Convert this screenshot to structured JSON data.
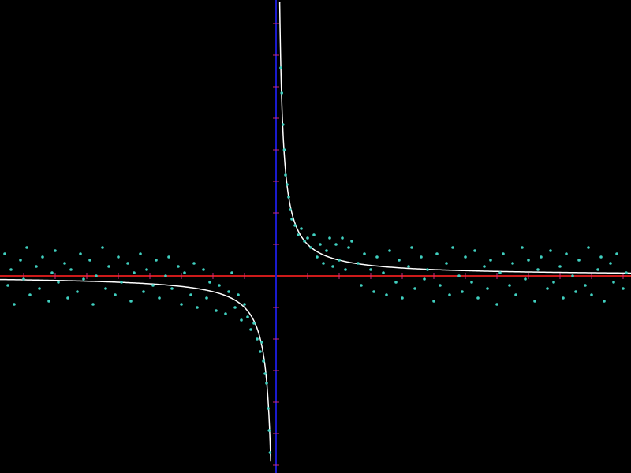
{
  "chart_data": {
    "type": "scatter",
    "title": "",
    "xlabel": "",
    "ylabel": "",
    "xlim": [
      -8.75,
      11.25
    ],
    "ylim": [
      -6.25,
      8.75
    ],
    "grid": false,
    "legend": "none",
    "colors": {
      "background": "#000000",
      "x_axis": "#cc1a1a",
      "y_axis": "#1a1acc",
      "tick": "#cc2a7a",
      "curve": "#ffffff",
      "points": "#40d0c0"
    },
    "x_ticks": [
      -8,
      -7,
      -6,
      -5,
      -4,
      -3,
      -2,
      -1,
      1,
      2,
      3,
      4,
      5,
      6,
      7,
      8,
      9,
      10,
      11
    ],
    "y_ticks": [
      -6,
      -5,
      -4,
      -3,
      -2,
      -1,
      1,
      2,
      3,
      4,
      5,
      6,
      7,
      8
    ],
    "curve": {
      "name": "",
      "formula": "y = 1/x",
      "left_x_range": [
        -8.75,
        -0.17
      ],
      "right_x_range": [
        0.115,
        11.25
      ]
    },
    "series": [
      {
        "name": "",
        "points": [
          [
            -8.6,
            0.7
          ],
          [
            -8.5,
            -0.3
          ],
          [
            -8.4,
            0.2
          ],
          [
            -8.3,
            -0.9
          ],
          [
            -8.1,
            0.5
          ],
          [
            -8.0,
            -0.1
          ],
          [
            -7.9,
            0.9
          ],
          [
            -7.8,
            -0.6
          ],
          [
            -7.6,
            0.3
          ],
          [
            -7.5,
            -0.4
          ],
          [
            -7.4,
            0.6
          ],
          [
            -7.2,
            -0.8
          ],
          [
            -7.1,
            0.1
          ],
          [
            -7.0,
            0.8
          ],
          [
            -6.9,
            -0.2
          ],
          [
            -6.7,
            0.4
          ],
          [
            -6.6,
            -0.7
          ],
          [
            -6.5,
            0.2
          ],
          [
            -6.3,
            -0.5
          ],
          [
            -6.2,
            0.7
          ],
          [
            -6.1,
            -0.1
          ],
          [
            -5.9,
            0.5
          ],
          [
            -5.8,
            -0.9
          ],
          [
            -5.7,
            0.0
          ],
          [
            -5.5,
            0.9
          ],
          [
            -5.4,
            -0.4
          ],
          [
            -5.3,
            0.3
          ],
          [
            -5.1,
            -0.6
          ],
          [
            -5.0,
            0.6
          ],
          [
            -4.9,
            -0.2
          ],
          [
            -4.7,
            0.4
          ],
          [
            -4.6,
            -0.8
          ],
          [
            -4.5,
            0.1
          ],
          [
            -4.3,
            0.7
          ],
          [
            -4.2,
            -0.5
          ],
          [
            -4.1,
            0.2
          ],
          [
            -3.9,
            -0.3
          ],
          [
            -3.8,
            0.5
          ],
          [
            -3.7,
            -0.7
          ],
          [
            -3.5,
            0.0
          ],
          [
            -3.4,
            0.6
          ],
          [
            -3.3,
            -0.4
          ],
          [
            -3.1,
            0.3
          ],
          [
            -3.0,
            -0.9
          ],
          [
            -2.9,
            0.1
          ],
          [
            -2.7,
            -0.6
          ],
          [
            -2.6,
            0.4
          ],
          [
            -2.5,
            -1.0
          ],
          [
            -2.3,
            0.2
          ],
          [
            -2.2,
            -0.7
          ],
          [
            -2.1,
            -0.2
          ],
          [
            -1.9,
            -1.1
          ],
          [
            -1.8,
            -0.3
          ],
          [
            -1.6,
            -1.2
          ],
          [
            -1.5,
            -0.5
          ],
          [
            -1.4,
            0.1
          ],
          [
            -1.3,
            -1.0
          ],
          [
            -1.2,
            -0.6
          ],
          [
            -1.1,
            -1.4
          ],
          [
            -1.0,
            -0.9
          ],
          [
            -0.9,
            -1.3
          ],
          [
            -0.8,
            -1.7
          ],
          [
            -0.7,
            -1.5
          ],
          [
            -0.6,
            -2.0
          ],
          [
            -0.5,
            -2.4
          ],
          [
            -0.45,
            -2.1
          ],
          [
            -0.4,
            -2.7
          ],
          [
            -0.35,
            -3.1
          ],
          [
            -0.3,
            -3.4
          ],
          [
            -0.25,
            -4.2
          ],
          [
            -0.22,
            -4.9
          ],
          [
            -0.19,
            -5.6
          ],
          [
            0.15,
            6.6
          ],
          [
            0.18,
            5.8
          ],
          [
            0.22,
            4.8
          ],
          [
            0.26,
            4.0
          ],
          [
            0.3,
            3.2
          ],
          [
            0.35,
            2.9
          ],
          [
            0.4,
            2.5
          ],
          [
            0.45,
            2.1
          ],
          [
            0.5,
            1.8
          ],
          [
            0.6,
            1.6
          ],
          [
            0.7,
            1.3
          ],
          [
            0.8,
            1.5
          ],
          [
            0.9,
            1.1
          ],
          [
            1.0,
            1.2
          ],
          [
            1.1,
            0.9
          ],
          [
            1.2,
            1.3
          ],
          [
            1.3,
            0.6
          ],
          [
            1.4,
            1.0
          ],
          [
            1.5,
            0.4
          ],
          [
            1.6,
            0.8
          ],
          [
            1.7,
            1.2
          ],
          [
            1.8,
            0.3
          ],
          [
            1.9,
            1.0
          ],
          [
            2.0,
            0.5
          ],
          [
            2.1,
            1.2
          ],
          [
            2.2,
            0.2
          ],
          [
            2.3,
            0.9
          ],
          [
            2.4,
            1.1
          ],
          [
            2.6,
            0.4
          ],
          [
            2.7,
            -0.3
          ],
          [
            2.8,
            0.7
          ],
          [
            3.0,
            0.2
          ],
          [
            3.1,
            -0.5
          ],
          [
            3.2,
            0.6
          ],
          [
            3.4,
            0.1
          ],
          [
            3.5,
            -0.6
          ],
          [
            3.6,
            0.8
          ],
          [
            3.8,
            -0.2
          ],
          [
            3.9,
            0.5
          ],
          [
            4.0,
            -0.7
          ],
          [
            4.2,
            0.3
          ],
          [
            4.3,
            0.9
          ],
          [
            4.4,
            -0.4
          ],
          [
            4.6,
            0.6
          ],
          [
            4.7,
            -0.1
          ],
          [
            4.8,
            0.2
          ],
          [
            5.0,
            -0.8
          ],
          [
            5.1,
            0.7
          ],
          [
            5.2,
            -0.3
          ],
          [
            5.4,
            0.4
          ],
          [
            5.5,
            -0.6
          ],
          [
            5.6,
            0.9
          ],
          [
            5.8,
            0.0
          ],
          [
            5.9,
            -0.5
          ],
          [
            6.0,
            0.6
          ],
          [
            6.2,
            -0.2
          ],
          [
            6.3,
            0.8
          ],
          [
            6.4,
            -0.7
          ],
          [
            6.6,
            0.3
          ],
          [
            6.7,
            -0.4
          ],
          [
            6.8,
            0.5
          ],
          [
            7.0,
            -0.9
          ],
          [
            7.1,
            0.1
          ],
          [
            7.2,
            0.7
          ],
          [
            7.4,
            -0.3
          ],
          [
            7.5,
            0.4
          ],
          [
            7.6,
            -0.6
          ],
          [
            7.8,
            0.9
          ],
          [
            7.9,
            -0.1
          ],
          [
            8.0,
            0.5
          ],
          [
            8.2,
            -0.8
          ],
          [
            8.3,
            0.2
          ],
          [
            8.4,
            0.6
          ],
          [
            8.6,
            -0.4
          ],
          [
            8.7,
            0.8
          ],
          [
            8.8,
            -0.2
          ],
          [
            9.0,
            0.3
          ],
          [
            9.1,
            -0.7
          ],
          [
            9.2,
            0.7
          ],
          [
            9.4,
            0.0
          ],
          [
            9.5,
            -0.5
          ],
          [
            9.6,
            0.5
          ],
          [
            9.8,
            -0.3
          ],
          [
            9.9,
            0.9
          ],
          [
            10.0,
            -0.6
          ],
          [
            10.2,
            0.2
          ],
          [
            10.3,
            0.6
          ],
          [
            10.4,
            -0.8
          ],
          [
            10.6,
            0.4
          ],
          [
            10.7,
            -0.2
          ],
          [
            10.8,
            0.7
          ],
          [
            11.0,
            -0.4
          ],
          [
            11.1,
            0.1
          ]
        ]
      }
    ]
  }
}
